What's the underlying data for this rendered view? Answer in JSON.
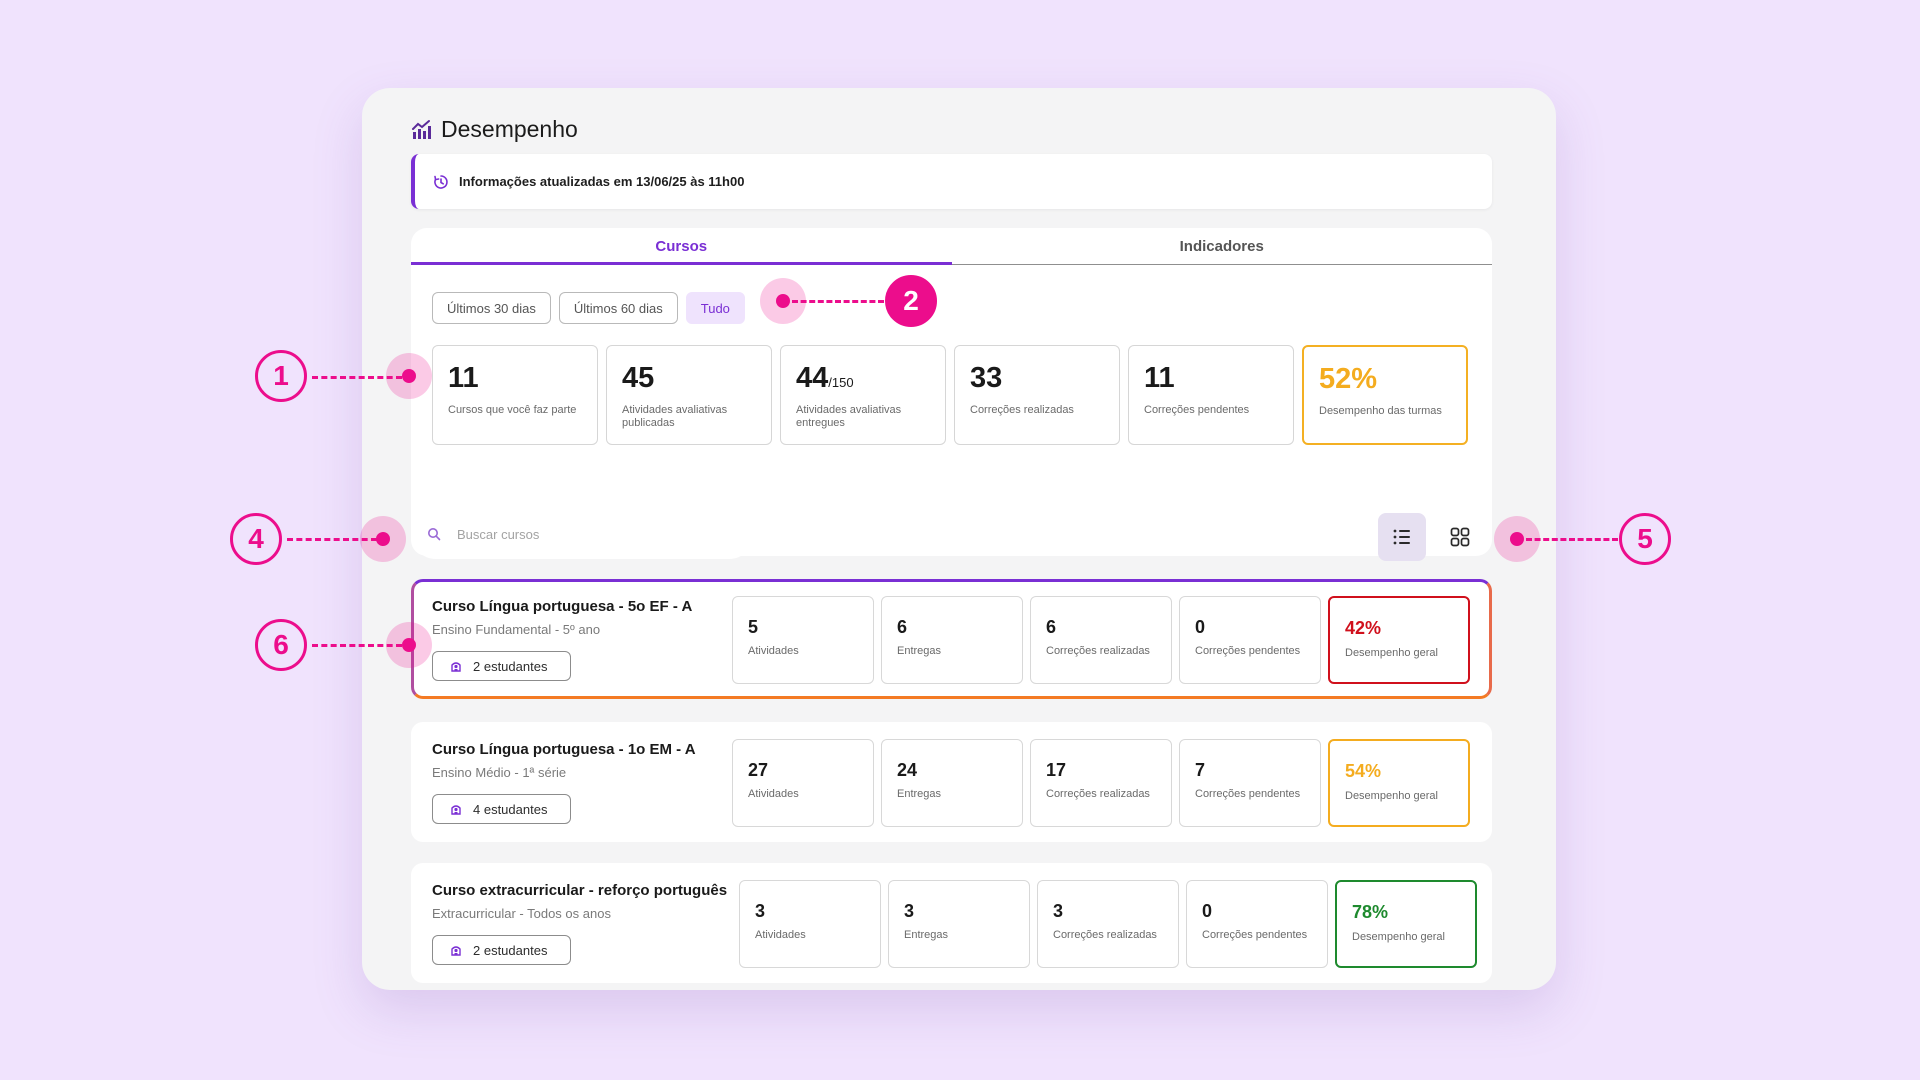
{
  "page": {
    "title": "Desempenho"
  },
  "info_banner": {
    "text": "Informações atualizadas em 13/06/25 às 11h00"
  },
  "tabs": [
    {
      "label": "Cursos",
      "active": true
    },
    {
      "label": "Indicadores",
      "active": false
    }
  ],
  "filters": [
    {
      "label": "Últimos 30 dias",
      "active": false
    },
    {
      "label": "Últimos 60 dias",
      "active": false
    },
    {
      "label": "Tudo",
      "active": true
    }
  ],
  "stats": [
    {
      "value": "11",
      "label": "Cursos que você faz parte"
    },
    {
      "value": "45",
      "label": "Atividades avaliativas publicadas"
    },
    {
      "value": "44",
      "value_suffix": "/150",
      "label": "Atividades avaliativas entregues"
    },
    {
      "value": "33",
      "label": "Correções realizadas"
    },
    {
      "value": "11",
      "label": "Correções pendentes"
    },
    {
      "value": "52%",
      "label": "Desempenho das turmas",
      "color": "#f4ac1f"
    }
  ],
  "search": {
    "placeholder": "Buscar cursos",
    "value": ""
  },
  "view_toggle": {
    "selected": "list"
  },
  "metric_labels": {
    "atividades": "Atividades",
    "entregas": "Entregas",
    "correcoes_realizadas": "Correções realizadas",
    "correcoes_pendentes": "Correções pendentes",
    "desempenho": "Desempenho geral"
  },
  "courses": [
    {
      "name": "Curso Língua portuguesa - 5o EF - A",
      "subtitle": "Ensino Fundamental - 5º ano",
      "students": "2 estudantes",
      "atividades": "5",
      "entregas": "6",
      "correcoes_realizadas": "6",
      "correcoes_pendentes": "0",
      "desempenho": "42%",
      "color": "#d0101c"
    },
    {
      "name": "Curso Língua portuguesa - 1o EM - A",
      "subtitle": "Ensino Médio - 1ª série",
      "students": "4 estudantes",
      "atividades": "27",
      "entregas": "24",
      "correcoes_realizadas": "17",
      "correcoes_pendentes": "7",
      "desempenho": "54%",
      "color": "#f4ac1f"
    },
    {
      "name": "Curso extracurricular - reforço português",
      "subtitle": "Extracurricular - Todos os anos",
      "students": "2 estudantes",
      "atividades": "3",
      "entregas": "3",
      "correcoes_realizadas": "3",
      "correcoes_pendentes": "0",
      "desempenho": "78%",
      "color": "#1e8a2e"
    }
  ],
  "callouts": [
    "1",
    "2",
    "4",
    "5",
    "6"
  ],
  "colors": {
    "accent": "#7a2fd4",
    "callout": "#ec0d8c",
    "background": "#f0e3fd"
  }
}
